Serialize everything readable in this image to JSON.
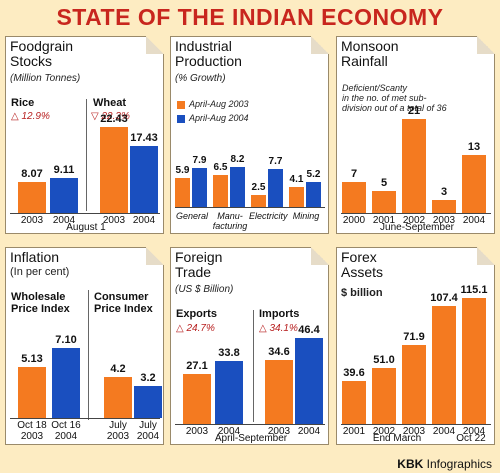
{
  "title": "STATE OF THE INDIAN ECONOMY",
  "credit": {
    "brand": "KBK",
    "rest": "Infographics"
  },
  "colors": {
    "orange": "#f47a20",
    "blue": "#1a4fbf",
    "red": "#c8261e"
  },
  "panels": {
    "foodgrain": {
      "title": "Foodgrain",
      "title2": "Stocks",
      "subtitle": "(Million Tonnes)",
      "groups": [
        {
          "label": "Rice",
          "change": "12.9%",
          "arrow": "△"
        },
        {
          "label": "Wheat",
          "change": "22.3%",
          "arrow": "▽"
        }
      ],
      "footer": "August 1"
    },
    "industrial": {
      "title": "Industrial",
      "title2": "Production",
      "subtitle": "(% Growth)",
      "legend": [
        "April-Aug 2003",
        "April-Aug 2004"
      ]
    },
    "monsoon": {
      "title": "Monsoon",
      "title2": "Rainfall",
      "note1": "Deficient/Scanty",
      "note2": "in the no. of met sub-",
      "note3": "division out of a total of 36",
      "footer": "June-September"
    },
    "inflation": {
      "title": "Inflation",
      "subtitle": "(In per cent)",
      "groups": [
        {
          "label": "Wholesale",
          "label2": "Price Index"
        },
        {
          "label": "Consumer",
          "label2": "Price Index"
        }
      ]
    },
    "trade": {
      "title": "Foreign",
      "title2": "Trade",
      "subtitle": "(US $ Billion)",
      "groups": [
        {
          "label": "Exports",
          "change": "24.7%",
          "arrow": "△"
        },
        {
          "label": "Imports",
          "change": "34.1%",
          "arrow": "△"
        }
      ],
      "footer": "April-September"
    },
    "forex": {
      "title": "Forex",
      "title2": "Assets",
      "subtitle": "$ billion",
      "footer1": "End March",
      "footer2": "Oct 22"
    }
  },
  "chart_data": [
    {
      "type": "bar",
      "title": "Foodgrain Stocks",
      "categories": [
        "2003",
        "2004",
        "2003",
        "2004"
      ],
      "groups": [
        "Rice",
        "Rice",
        "Wheat",
        "Wheat"
      ],
      "values": [
        8.07,
        9.11,
        22.43,
        17.43
      ],
      "value_labels": [
        "8.07",
        "9.11",
        "22.43",
        "17.43"
      ]
    },
    {
      "type": "bar",
      "title": "Industrial Production",
      "categories": [
        "General",
        "Manu-facturing",
        "Electricity",
        "Mining"
      ],
      "series": [
        {
          "name": "April-Aug 2003",
          "values": [
            5.9,
            6.5,
            2.5,
            4.1
          ]
        },
        {
          "name": "April-Aug 2004",
          "values": [
            7.9,
            8.2,
            7.7,
            5.2
          ]
        }
      ],
      "cat_line1": [
        "General",
        "Manu-",
        "Electricity",
        "Mining"
      ],
      "cat_line2": [
        "",
        "facturing",
        "",
        ""
      ]
    },
    {
      "type": "bar",
      "title": "Monsoon Rainfall",
      "categories": [
        "2000",
        "2001",
        "2002",
        "2003",
        "2004"
      ],
      "values": [
        7,
        5,
        21,
        3,
        13
      ],
      "value_labels": [
        "7",
        "5",
        "21",
        "3",
        "13"
      ]
    },
    {
      "type": "bar",
      "title": "Inflation",
      "categories": [
        "Oct 18 2003",
        "Oct 16 2004",
        "July 2003",
        "July 2004"
      ],
      "cat_line1": [
        "Oct 18",
        "Oct 16",
        "July",
        "July"
      ],
      "cat_line2": [
        "2003",
        "2004",
        "2003",
        "2004"
      ],
      "groups": [
        "Wholesale Price Index",
        "Wholesale Price Index",
        "Consumer Price Index",
        "Consumer Price Index"
      ],
      "values": [
        5.13,
        7.1,
        4.2,
        3.2
      ],
      "value_labels": [
        "5.13",
        "7.10",
        "4.2",
        "3.2"
      ]
    },
    {
      "type": "bar",
      "title": "Foreign Trade",
      "categories": [
        "2003",
        "2004",
        "2003",
        "2004"
      ],
      "groups": [
        "Exports",
        "Exports",
        "Imports",
        "Imports"
      ],
      "values": [
        27.1,
        33.8,
        34.6,
        46.4
      ],
      "value_labels": [
        "27.1",
        "33.8",
        "34.6",
        "46.4"
      ]
    },
    {
      "type": "bar",
      "title": "Forex Assets",
      "categories": [
        "2001",
        "2002",
        "2003",
        "2004",
        "2004"
      ],
      "values": [
        39.6,
        51.0,
        71.9,
        107.4,
        115.1
      ],
      "value_labels": [
        "39.6",
        "51.0",
        "71.9",
        "107.4",
        "115.1"
      ]
    }
  ]
}
